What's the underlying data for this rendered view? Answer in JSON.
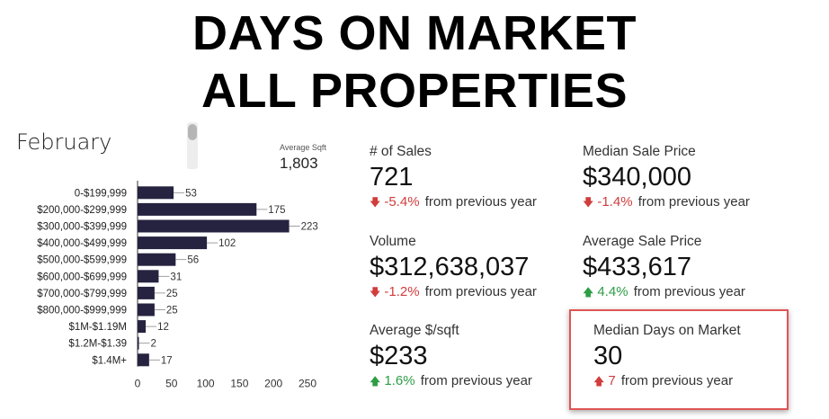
{
  "header": {
    "title_line1": "DAYS ON MARKET",
    "title_line2": "ALL PROPERTIES"
  },
  "period": "February",
  "average_sqft": {
    "label": "Average Sqft",
    "value": "1,803"
  },
  "chart_data": {
    "type": "bar",
    "orientation": "horizontal",
    "categories": [
      "0-$199,999",
      "$200,000-$299,999",
      "$300,000-$399,999",
      "$400,000-$499,999",
      "$500,000-$599,999",
      "$600,000-$699,999",
      "$700,000-$799,999",
      "$800,000-$999,999",
      "$1M-$1.19M",
      "$1.2M-$1.39",
      "$1.4M+"
    ],
    "values": [
      53,
      175,
      223,
      102,
      56,
      31,
      25,
      25,
      12,
      2,
      17
    ],
    "xticks": [
      0,
      50,
      100,
      150,
      200,
      250
    ],
    "xlim": [
      0,
      250
    ],
    "bar_color": "#25233f",
    "title": "",
    "xlabel": "",
    "ylabel": ""
  },
  "kpis": {
    "sales": {
      "label": "# of Sales",
      "value": "721",
      "change": "-5.4%",
      "change_text": "from previous year",
      "direction": "down",
      "color": "#d13c3c"
    },
    "median_price": {
      "label": "Median Sale Price",
      "value": "$340,000",
      "change": "-1.4%",
      "change_text": "from previous year",
      "direction": "down",
      "color": "#d13c3c"
    },
    "volume": {
      "label": "Volume",
      "value": "$312,638,037",
      "change": "-1.2%",
      "change_text": "from previous year",
      "direction": "down",
      "color": "#d13c3c"
    },
    "avg_price": {
      "label": "Average Sale Price",
      "value": "$433,617",
      "change": "4.4%",
      "change_text": "from previous year",
      "direction": "up",
      "color": "#2e9d45"
    },
    "avg_psf": {
      "label": "Average $/sqft",
      "value": "$233",
      "change": "1.6%",
      "change_text": "from previous year",
      "direction": "up",
      "color": "#2e9d45"
    },
    "median_dom": {
      "label": "Median Days on Market",
      "value": "30",
      "change": "7",
      "change_text": "from previous year",
      "direction": "up",
      "color": "#d13c3c"
    }
  },
  "highlight_color": "#e05555"
}
